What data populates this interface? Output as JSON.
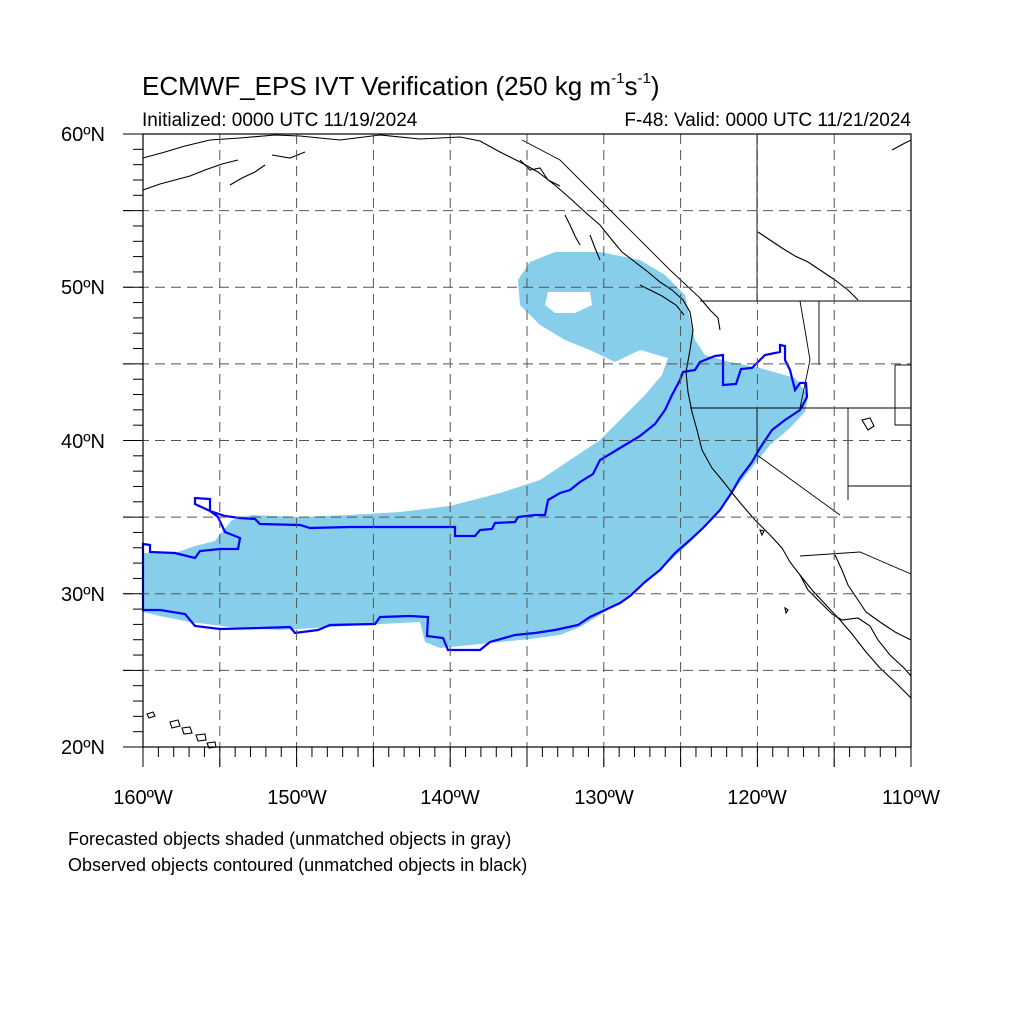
{
  "header": {
    "title_main": "ECMWF_EPS IVT Verification (250 kg m",
    "title_exp1": "-1",
    "title_mid": "s",
    "title_exp2": "-1",
    "title_end": ")",
    "initialized": "Initialized: 0000 UTC 11/19/2024",
    "valid": "F-48: Valid: 0000 UTC 11/21/2024"
  },
  "map": {
    "lon_range": [
      -160,
      -110
    ],
    "lat_range": [
      20,
      60
    ],
    "lat_labels": [
      "20ºN",
      "30ºN",
      "40ºN",
      "50ºN",
      "60ºN"
    ],
    "lon_labels": [
      "160ºW",
      "150ºW",
      "140ºW",
      "130ºW",
      "120ºW",
      "110ºW"
    ],
    "grid_lats": [
      25,
      30,
      35,
      40,
      45,
      50,
      55
    ],
    "grid_lons": [
      -155,
      -150,
      -145,
      -140,
      -135,
      -130,
      -125,
      -120,
      -115
    ],
    "colors": {
      "forecast_fill": "#87ceeb",
      "observed_contour": "#0000ff",
      "coastline": "#000000",
      "grid": "#555555"
    }
  },
  "notes": {
    "line1": "Forecasted objects shaded (unmatched objects in gray)",
    "line2": "Observed objects contoured (unmatched objects in black)"
  }
}
